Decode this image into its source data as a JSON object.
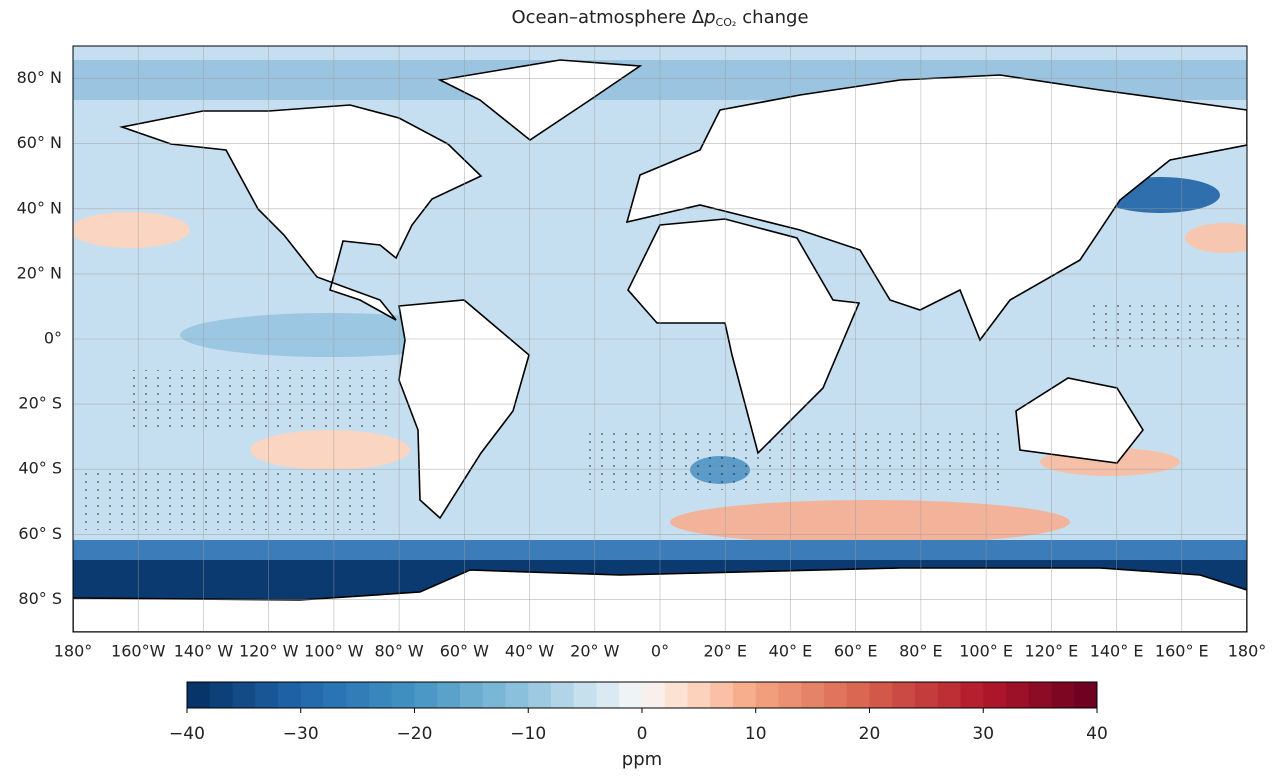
{
  "title": {
    "text": "Ocean–atmosphere Δ",
    "symbol": "p",
    "subscript": "CO₂",
    "suffix": "change"
  },
  "map": {
    "lonlim": [
      -180,
      180
    ],
    "latlim": [
      -90,
      90
    ],
    "lonticks": [
      {
        "value": -180,
        "label": "180°"
      },
      {
        "value": -160,
        "label": "160°W"
      },
      {
        "value": -140,
        "label": "140° W"
      },
      {
        "value": -120,
        "label": "120° W"
      },
      {
        "value": -100,
        "label": "100° W"
      },
      {
        "value": -80,
        "label": "80° W"
      },
      {
        "value": -60,
        "label": "60° W"
      },
      {
        "value": -40,
        "label": "40° W"
      },
      {
        "value": -20,
        "label": "20° W"
      },
      {
        "value": 0,
        "label": "0°"
      },
      {
        "value": 20,
        "label": "20° E"
      },
      {
        "value": 40,
        "label": "40° E"
      },
      {
        "value": 60,
        "label": "60° E"
      },
      {
        "value": 80,
        "label": "80° E"
      },
      {
        "value": 100,
        "label": "100° E"
      },
      {
        "value": 120,
        "label": "120° E"
      },
      {
        "value": 140,
        "label": "140° E"
      },
      {
        "value": 160,
        "label": "160° E"
      },
      {
        "value": 180,
        "label": "180°"
      }
    ],
    "latticks": [
      {
        "value": 80,
        "label": "80° N"
      },
      {
        "value": 60,
        "label": "60° N"
      },
      {
        "value": 40,
        "label": "40° N"
      },
      {
        "value": 20,
        "label": "20° N"
      },
      {
        "value": 0,
        "label": "0°"
      },
      {
        "value": -20,
        "label": "20° S"
      },
      {
        "value": -40,
        "label": "40° S"
      },
      {
        "value": -60,
        "label": "60° S"
      },
      {
        "value": -80,
        "label": "80° S"
      }
    ]
  },
  "colorbar": {
    "lim": [
      -40,
      40
    ],
    "ticks": [
      {
        "value": -40,
        "label": "−40"
      },
      {
        "value": -30,
        "label": "−30"
      },
      {
        "value": -20,
        "label": "−20"
      },
      {
        "value": -10,
        "label": "−10"
      },
      0,
      10,
      20,
      30,
      40
    ],
    "label": "ppm"
  }
}
